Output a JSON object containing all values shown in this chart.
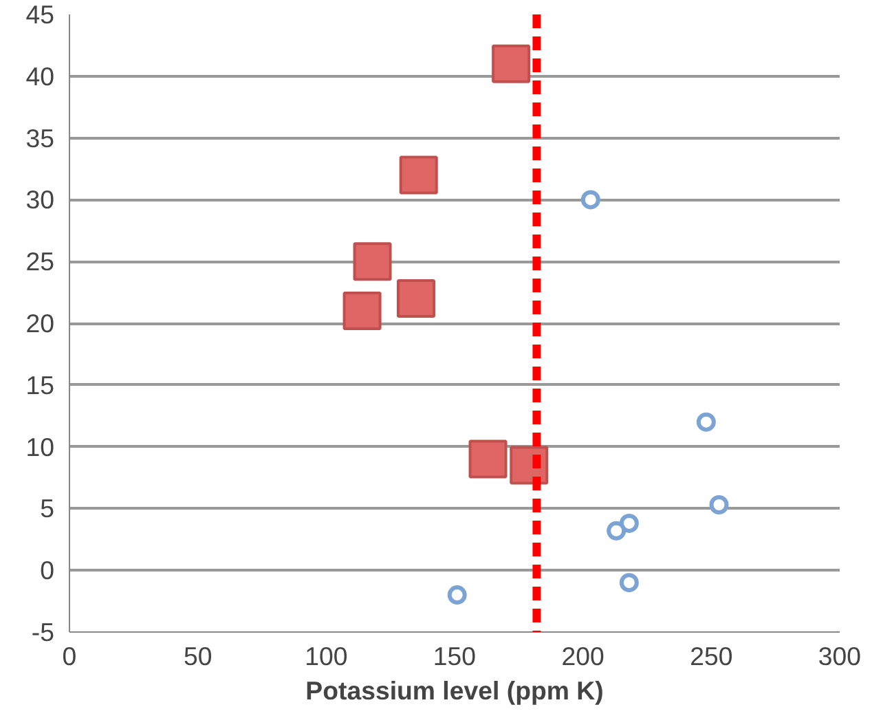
{
  "chart_data": {
    "type": "scatter",
    "xlabel": "Potassium level (ppm K)",
    "xlim": [
      0,
      300
    ],
    "xticks": [
      0,
      50,
      100,
      150,
      200,
      250,
      300
    ],
    "ylim": [
      -5,
      45
    ],
    "yticks": [
      -5,
      0,
      5,
      10,
      15,
      20,
      25,
      30,
      35,
      40,
      45
    ],
    "grid": "y",
    "series": [
      {
        "color": "#e06666",
        "marker": "square",
        "x": [
          172,
          136,
          118,
          114,
          135,
          163,
          179
        ],
        "values": [
          41,
          32,
          25,
          21,
          22,
          9,
          8.5
        ]
      },
      {
        "color": "#7ba3d4",
        "marker": "circle",
        "x": [
          203,
          248,
          253,
          218,
          213,
          218,
          151
        ],
        "values": [
          30,
          12,
          5.3,
          3.8,
          3.2,
          -1,
          -2
        ]
      }
    ],
    "ref_lines": [
      {
        "axis": "x",
        "value": 182,
        "color": "#ff0000",
        "line_style": "dashed"
      }
    ]
  }
}
